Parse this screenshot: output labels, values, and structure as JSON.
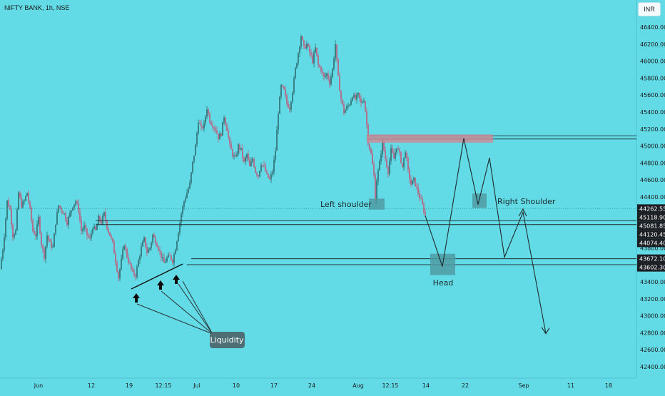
{
  "header": {
    "symbol": "NIFTY BANK, 1h, NSE",
    "currency_button": "INR"
  },
  "colors": {
    "background": "#63dbe6",
    "candle_up": "#2e6b70",
    "candle_down": "#c2587a",
    "zone": "#4f9aa2",
    "resistance_band": "#c98a96",
    "axis_label_bg": "#1c1f24"
  },
  "chart_data": {
    "type": "candlestick",
    "y_axis": {
      "ticks": [
        46400,
        46200,
        46000,
        45800,
        45600,
        45400,
        45200,
        45000,
        44800,
        44600,
        44400,
        44200,
        43800,
        43600,
        43400,
        43200,
        43000,
        42800,
        42600,
        42400
      ],
      "decimals": 2,
      "range": [
        42310,
        46540
      ]
    },
    "x_axis": {
      "ticks": [
        "Jun",
        "12",
        "19",
        "12:15",
        "Jul",
        "10",
        "17",
        "24",
        "Aug",
        "12:15",
        "14",
        "22",
        "Sep",
        "11",
        "18"
      ]
    },
    "price_labels": [
      44262.55,
      45118.9,
      45081.85,
      44120.45,
      44074.4,
      43672.1,
      43602.3
    ],
    "horizontal_levels": [
      45118.9,
      45081.85,
      44120.45,
      44074.4,
      43672.1,
      43602.3
    ],
    "price_path": [
      [
        0,
        43550
      ],
      [
        5,
        43850
      ],
      [
        10,
        44350
      ],
      [
        14,
        44250
      ],
      [
        18,
        43950
      ],
      [
        22,
        44000
      ],
      [
        26,
        44450
      ],
      [
        30,
        44300
      ],
      [
        34,
        44350
      ],
      [
        38,
        44450
      ],
      [
        42,
        44250
      ],
      [
        46,
        44000
      ],
      [
        50,
        43950
      ],
      [
        54,
        44150
      ],
      [
        58,
        43850
      ],
      [
        62,
        43700
      ],
      [
        66,
        43950
      ],
      [
        70,
        43850
      ],
      [
        74,
        43800
      ],
      [
        78,
        44100
      ],
      [
        82,
        44300
      ],
      [
        86,
        44250
      ],
      [
        90,
        44200
      ],
      [
        94,
        44100
      ],
      [
        98,
        44200
      ],
      [
        102,
        44300
      ],
      [
        106,
        44350
      ],
      [
        110,
        44250
      ],
      [
        114,
        44000
      ],
      [
        118,
        44050
      ],
      [
        122,
        43950
      ],
      [
        126,
        43900
      ],
      [
        130,
        44050
      ],
      [
        134,
        44000
      ],
      [
        138,
        44150
      ],
      [
        142,
        44100
      ],
      [
        146,
        44200
      ],
      [
        150,
        44050
      ],
      [
        154,
        43950
      ],
      [
        158,
        43850
      ],
      [
        162,
        43650
      ],
      [
        166,
        43450
      ],
      [
        170,
        43650
      ],
      [
        174,
        43850
      ],
      [
        178,
        43700
      ],
      [
        182,
        43600
      ],
      [
        186,
        43500
      ],
      [
        190,
        43480
      ],
      [
        194,
        43650
      ],
      [
        198,
        43800
      ],
      [
        202,
        43900
      ],
      [
        206,
        43750
      ],
      [
        210,
        43800
      ],
      [
        214,
        43950
      ],
      [
        218,
        43880
      ],
      [
        222,
        43800
      ],
      [
        226,
        43700
      ],
      [
        230,
        43620
      ],
      [
        234,
        43680
      ],
      [
        238,
        43700
      ],
      [
        242,
        43650
      ],
      [
        246,
        43800
      ],
      [
        250,
        44000
      ],
      [
        254,
        44200
      ],
      [
        258,
        44350
      ],
      [
        262,
        44450
      ],
      [
        266,
        44550
      ],
      [
        270,
        44800
      ],
      [
        274,
        45000
      ],
      [
        278,
        45300
      ],
      [
        282,
        45200
      ],
      [
        286,
        45250
      ],
      [
        290,
        45450
      ],
      [
        294,
        45300
      ],
      [
        298,
        45250
      ],
      [
        302,
        45200
      ],
      [
        306,
        45100
      ],
      [
        310,
        45150
      ],
      [
        314,
        45350
      ],
      [
        318,
        45200
      ],
      [
        322,
        45000
      ],
      [
        326,
        44900
      ],
      [
        330,
        44850
      ],
      [
        334,
        45000
      ],
      [
        338,
        44950
      ],
      [
        342,
        44800
      ],
      [
        346,
        44900
      ],
      [
        350,
        44750
      ],
      [
        354,
        44850
      ],
      [
        358,
        44700
      ],
      [
        362,
        44650
      ],
      [
        366,
        44800
      ],
      [
        370,
        44750
      ],
      [
        374,
        44650
      ],
      [
        378,
        44600
      ],
      [
        382,
        44700
      ],
      [
        386,
        44950
      ],
      [
        390,
        45400
      ],
      [
        394,
        45700
      ],
      [
        398,
        45650
      ],
      [
        402,
        45500
      ],
      [
        406,
        45450
      ],
      [
        410,
        45650
      ],
      [
        414,
        45900
      ],
      [
        418,
        46100
      ],
      [
        422,
        46300
      ],
      [
        426,
        46150
      ],
      [
        430,
        46200
      ],
      [
        434,
        46100
      ],
      [
        438,
        46000
      ],
      [
        442,
        46150
      ],
      [
        446,
        45950
      ],
      [
        450,
        45900
      ],
      [
        454,
        45800
      ],
      [
        458,
        45850
      ],
      [
        462,
        45750
      ],
      [
        466,
        45900
      ],
      [
        470,
        46200
      ],
      [
        474,
        45800
      ],
      [
        478,
        45550
      ],
      [
        482,
        45400
      ],
      [
        486,
        45450
      ],
      [
        490,
        45500
      ],
      [
        494,
        45600
      ],
      [
        498,
        45550
      ],
      [
        502,
        45600
      ],
      [
        506,
        45500
      ],
      [
        510,
        45550
      ],
      [
        513,
        45350
      ],
      [
        516,
        45050
      ],
      [
        520,
        44900
      ],
      [
        524,
        44650
      ],
      [
        526,
        44350
      ],
      [
        528,
        44600
      ],
      [
        532,
        44800
      ],
      [
        536,
        45050
      ],
      [
        540,
        44850
      ],
      [
        544,
        44700
      ],
      [
        548,
        44950
      ],
      [
        552,
        44850
      ],
      [
        556,
        45000
      ],
      [
        560,
        44900
      ],
      [
        564,
        44750
      ],
      [
        568,
        44950
      ],
      [
        572,
        44700
      ],
      [
        576,
        44550
      ],
      [
        580,
        44600
      ],
      [
        584,
        44500
      ],
      [
        588,
        44400
      ],
      [
        592,
        44300
      ],
      [
        596,
        44180
      ]
    ],
    "projected_path": [
      [
        596,
        44180
      ],
      [
        620,
        43580
      ],
      [
        650,
        45090
      ],
      [
        670,
        44310
      ],
      [
        686,
        44860
      ],
      [
        707,
        43690
      ],
      [
        733,
        44220
      ],
      [
        765,
        42790
      ]
    ],
    "zones": [
      {
        "label": "Left shoulder",
        "price_low": 44250,
        "price_high": 44380
      },
      {
        "label": "Head",
        "price_low": 43480,
        "price_high": 43730
      },
      {
        "label": "Right Shoulder",
        "price_low": 44270,
        "price_high": 44440
      }
    ],
    "annotations": [
      "Left shoulder",
      "Head",
      "Right Shoulder",
      "Liquidity"
    ]
  }
}
